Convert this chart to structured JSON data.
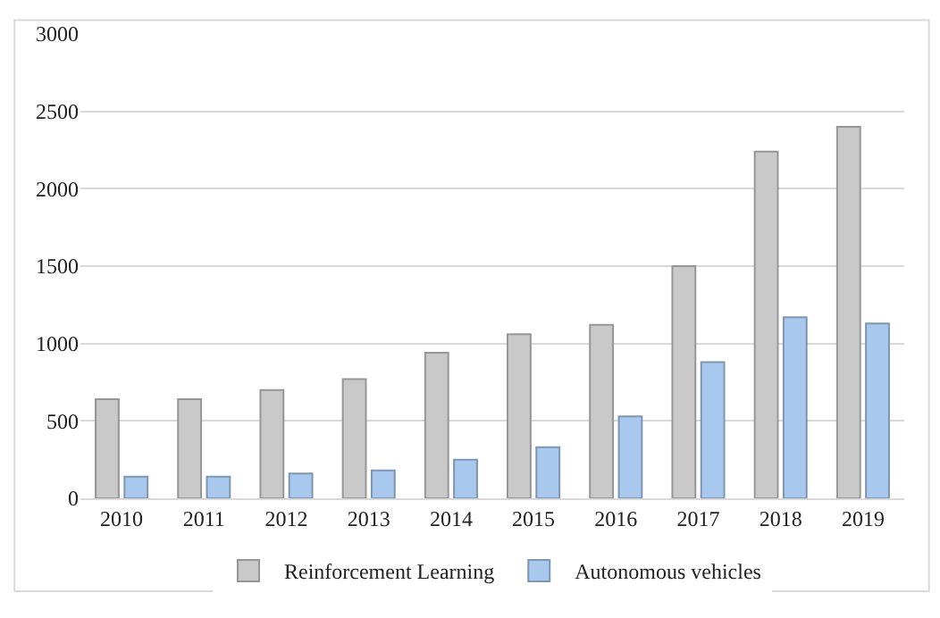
{
  "chart_data": {
    "type": "bar",
    "categories": [
      "2010",
      "2011",
      "2012",
      "2013",
      "2014",
      "2015",
      "2016",
      "2017",
      "2018",
      "2019"
    ],
    "series": [
      {
        "name": "Reinforcement Learning",
        "color": "#c9c9c9",
        "values": [
          640,
          640,
          700,
          770,
          940,
          1060,
          1120,
          1500,
          2240,
          2400
        ]
      },
      {
        "name": "Autonomous vehicles",
        "color": "#a9c8ee",
        "values": [
          140,
          140,
          160,
          180,
          250,
          330,
          530,
          880,
          1170,
          1130
        ]
      }
    ],
    "ylim": [
      0,
      3000
    ],
    "yticks": [
      0,
      500,
      1000,
      1500,
      2000,
      2500,
      3000
    ],
    "grid": "y",
    "legend": "bottom"
  }
}
